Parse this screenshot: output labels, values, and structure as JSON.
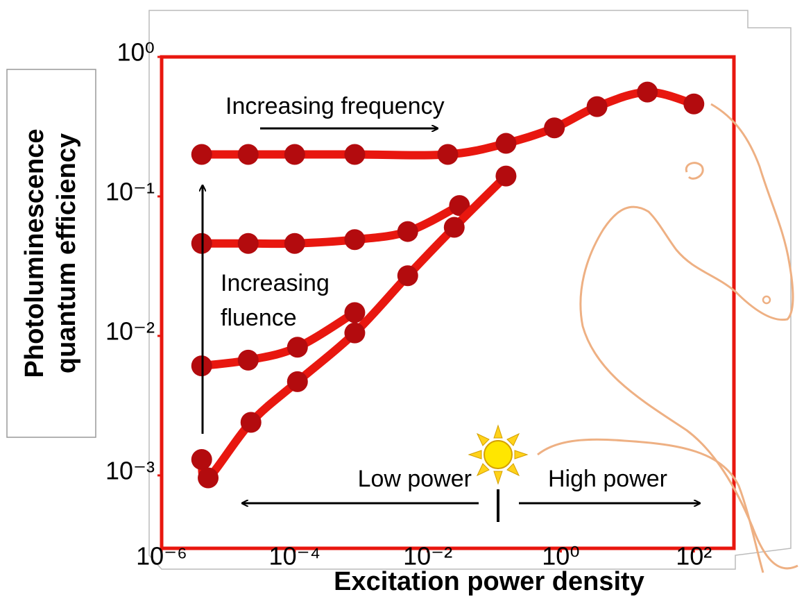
{
  "chart_data": {
    "type": "line",
    "x_label": "Excitation power density",
    "y_label": [
      "Photoluminescence",
      "quantum efficiency"
    ],
    "x_log": true,
    "y_log": true,
    "xlim": [
      1e-06,
      400
    ],
    "ylim": [
      0.0003,
      1
    ],
    "xticks": [
      {
        "value": 1e-06,
        "label": "10⁻⁶"
      },
      {
        "value": 0.0001,
        "label": "10⁻⁴"
      },
      {
        "value": 0.01,
        "label": "10⁻²"
      },
      {
        "value": 1,
        "label": "10⁰"
      },
      {
        "value": 100,
        "label": "10²"
      }
    ],
    "yticks": [
      {
        "value": 0.001,
        "label": "10⁻³"
      },
      {
        "value": 0.01,
        "label": "10⁻²"
      },
      {
        "value": 0.1,
        "label": "10⁻¹"
      },
      {
        "value": 1,
        "label": "10⁰"
      }
    ],
    "frame_color": "#e8170f",
    "marker_color": "#b30b0e",
    "annotations": [
      "Increasing frequency",
      "Increasing",
      "fluence",
      "Low power",
      "High power"
    ],
    "series": [
      {
        "color": "#e8170f",
        "x": [
          4e-06,
          2e-05,
          0.0001,
          0.0008,
          0.02,
          0.15,
          0.8,
          3.5,
          20,
          100
        ],
        "values": [
          0.2,
          0.2,
          0.2,
          0.2,
          0.2,
          0.24,
          0.31,
          0.44,
          0.56,
          0.46
        ]
      },
      {
        "color": "#e8170f",
        "x": [
          4e-06,
          2e-05,
          0.0001,
          0.0008,
          0.005,
          0.03
        ],
        "values": [
          0.046,
          0.046,
          0.046,
          0.049,
          0.056,
          0.086
        ]
      },
      {
        "color": "#e8170f",
        "x": [
          4e-06,
          2e-05,
          0.00011,
          0.0008
        ],
        "values": [
          0.0061,
          0.0067,
          0.0083,
          0.0147
        ]
      },
      {
        "color": "#e8170f",
        "x": [
          4e-06,
          5e-06,
          2.2e-05,
          0.00011,
          0.0008,
          0.005,
          0.025,
          0.15
        ],
        "values": [
          0.0013,
          0.00096,
          0.0024,
          0.0047,
          0.0105,
          0.027,
          0.06,
          0.14
        ]
      }
    ]
  }
}
